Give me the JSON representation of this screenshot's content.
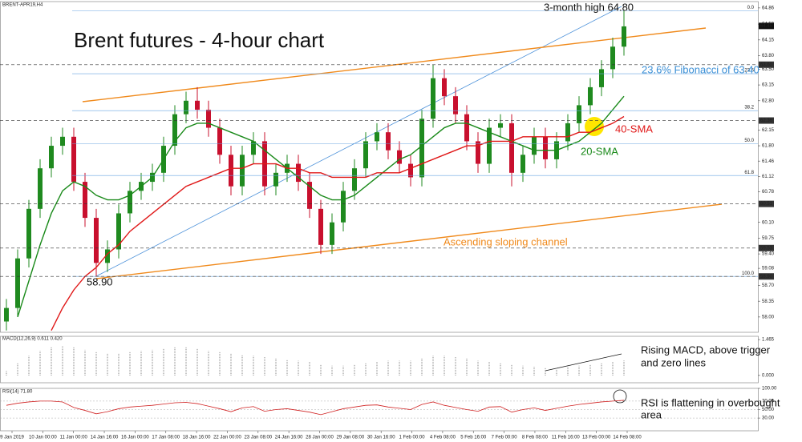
{
  "chart_data": [
    {
      "type": "candlestick",
      "title": "Brent futures - 4-hour chart",
      "symbol": "BRENT-APR19,H4",
      "open": [
        57.9,
        58.2,
        59.3,
        60.4,
        61.3,
        61.8,
        62.0,
        61.0,
        60.2,
        59.2,
        59.5,
        60.3,
        60.8,
        61.0,
        61.2,
        61.8,
        62.5,
        62.8,
        62.6,
        62.2,
        61.6,
        60.9,
        61.6,
        61.9,
        60.9,
        61.2,
        61.4,
        61.0,
        60.4,
        59.6,
        60.1,
        60.8,
        61.3,
        61.9,
        62.1,
        61.7,
        61.4,
        61.1,
        62.4,
        63.3,
        62.9,
        62.5,
        61.9,
        61.4,
        62.2,
        62.3,
        61.2,
        61.6,
        62.0,
        61.5,
        61.9,
        62.3,
        62.7,
        63.1,
        63.5,
        64.0
      ],
      "high": [
        58.4,
        59.5,
        60.6,
        61.5,
        62.0,
        62.2,
        62.2,
        61.2,
        60.4,
        59.7,
        60.5,
        61.0,
        61.2,
        61.4,
        62.0,
        62.7,
        63.0,
        63.1,
        62.8,
        62.4,
        61.8,
        61.8,
        62.1,
        62.1,
        61.4,
        61.6,
        61.6,
        61.2,
        60.6,
        60.3,
        61.0,
        61.5,
        62.1,
        62.3,
        62.3,
        61.9,
        61.6,
        62.6,
        63.6,
        63.5,
        63.1,
        62.7,
        62.1,
        62.4,
        62.5,
        62.5,
        61.8,
        62.2,
        62.2,
        62.1,
        62.5,
        62.9,
        63.3,
        63.7,
        64.2,
        64.8
      ],
      "low": [
        57.7,
        58.0,
        59.1,
        60.2,
        61.1,
        61.6,
        60.8,
        60.0,
        58.9,
        59.0,
        59.3,
        60.1,
        60.6,
        60.8,
        61.0,
        61.6,
        62.3,
        62.4,
        62.0,
        61.4,
        60.7,
        60.7,
        61.4,
        60.7,
        60.7,
        61.0,
        60.8,
        60.2,
        59.4,
        59.4,
        59.9,
        60.6,
        61.1,
        61.7,
        61.5,
        61.2,
        60.9,
        60.9,
        62.2,
        62.7,
        62.3,
        61.7,
        61.2,
        61.2,
        62.0,
        60.9,
        61.0,
        61.4,
        61.3,
        61.3,
        61.7,
        62.1,
        62.5,
        62.9,
        63.3,
        63.8
      ],
      "close": [
        58.2,
        59.3,
        60.4,
        61.3,
        61.8,
        62.0,
        61.0,
        60.2,
        59.2,
        59.5,
        60.3,
        60.8,
        61.0,
        61.2,
        61.8,
        62.5,
        62.8,
        62.6,
        62.2,
        61.6,
        60.9,
        61.6,
        61.9,
        60.9,
        61.2,
        61.4,
        61.0,
        60.4,
        59.6,
        60.1,
        60.8,
        61.3,
        61.9,
        62.1,
        61.7,
        61.4,
        61.1,
        62.4,
        63.3,
        62.9,
        62.5,
        61.9,
        61.4,
        62.2,
        62.3,
        61.2,
        61.6,
        62.0,
        61.5,
        61.9,
        62.3,
        62.7,
        63.1,
        63.5,
        64.0,
        64.45
      ],
      "up_color": "#1f8a1f",
      "down_color": "#c8102e",
      "series": [
        {
          "name": "20-SMA",
          "color": "#1a8a1a",
          "values": [
            null,
            58.0,
            58.8,
            59.6,
            60.3,
            60.8,
            61.0,
            60.9,
            60.7,
            60.6,
            60.6,
            60.7,
            60.9,
            61.1,
            61.5,
            61.9,
            62.2,
            62.3,
            62.3,
            62.2,
            62.1,
            62.0,
            61.9,
            61.7,
            61.5,
            61.3,
            61.1,
            60.9,
            60.7,
            60.6,
            60.6,
            60.7,
            60.9,
            61.1,
            61.3,
            61.5,
            61.6,
            61.8,
            62.0,
            62.2,
            62.3,
            62.3,
            62.2,
            62.1,
            62.0,
            61.9,
            61.8,
            61.7,
            61.7,
            61.7,
            61.8,
            61.9,
            62.1,
            62.3,
            62.6,
            62.9
          ]
        },
        {
          "name": "40-SMA",
          "color": "#e01818",
          "values": [
            null,
            null,
            null,
            null,
            57.7,
            58.2,
            58.6,
            58.9,
            59.1,
            59.4,
            59.6,
            59.9,
            60.1,
            60.3,
            60.5,
            60.7,
            60.9,
            61.0,
            61.1,
            61.2,
            61.3,
            61.3,
            61.4,
            61.4,
            61.4,
            61.3,
            61.3,
            61.2,
            61.2,
            61.1,
            61.1,
            61.1,
            61.1,
            61.2,
            61.2,
            61.2,
            61.3,
            61.4,
            61.5,
            61.6,
            61.7,
            61.8,
            61.8,
            61.9,
            61.9,
            61.9,
            62.0,
            62.0,
            62.0,
            62.0,
            62.0,
            62.1,
            62.1,
            62.2,
            62.3,
            62.45
          ]
        }
      ],
      "ylim": [
        57.66,
        65.0
      ],
      "yticks": [
        {
          "value": 58.0,
          "label": "58.00"
        },
        {
          "value": 58.35,
          "label": "58.35"
        },
        {
          "value": 58.7,
          "label": "58.70"
        },
        {
          "value": 59.08,
          "label": "59.08"
        },
        {
          "value": 59.4,
          "label": "59.40"
        },
        {
          "value": 59.75,
          "label": "59.75"
        },
        {
          "value": 60.1,
          "label": "60.10"
        },
        {
          "value": 60.78,
          "label": "60.78"
        },
        {
          "value": 61.12,
          "label": "61.12"
        },
        {
          "value": 61.46,
          "label": "61.46"
        },
        {
          "value": 61.8,
          "label": "61.80"
        },
        {
          "value": 62.15,
          "label": "62.15"
        },
        {
          "value": 62.8,
          "label": "62.80"
        },
        {
          "value": 63.15,
          "label": "63.15"
        },
        {
          "value": 63.5,
          "label": "63.50"
        },
        {
          "value": 63.8,
          "label": "63.80"
        },
        {
          "value": 64.15,
          "label": "64.15"
        },
        {
          "value": 64.5,
          "label": "64.50"
        },
        {
          "value": 64.86,
          "label": "64.86"
        }
      ],
      "levels": [
        {
          "value": 63.6,
          "label": "63.60"
        },
        {
          "value": 62.36,
          "label": "62.36"
        },
        {
          "value": 60.51,
          "label": "60.51"
        },
        {
          "value": 59.53,
          "label": "59.53"
        },
        {
          "value": 58.9,
          "label": "58.90"
        }
      ],
      "current": {
        "value": 64.46,
        "label": "64.46"
      },
      "fibonacci": [
        {
          "value": 64.8,
          "label": "0.0"
        },
        {
          "value": 63.4,
          "label": "23.6"
        },
        {
          "value": 62.58,
          "label": "38.2"
        },
        {
          "value": 61.85,
          "label": "50.0"
        },
        {
          "value": 61.14,
          "label": "61.8"
        },
        {
          "value": 58.9,
          "label": "100.0"
        }
      ],
      "annotations": {
        "high": "3-month high 64.80",
        "fib": "23.6% Fibonacci of 63.40",
        "channel": "Ascending sloping channel",
        "low": "58.90"
      }
    },
    {
      "type": "bar",
      "title": "MACD(12,26,9) 0.611 0.420",
      "color": "#a8a8a8",
      "values": [
        0.2,
        0.5,
        0.8,
        1.0,
        1.15,
        1.2,
        1.15,
        1.05,
        0.95,
        0.9,
        0.9,
        0.95,
        1.0,
        1.05,
        1.1,
        1.15,
        1.15,
        1.1,
        1.0,
        0.95,
        0.9,
        0.85,
        0.8,
        0.75,
        0.7,
        0.65,
        0.6,
        0.55,
        0.45,
        0.4,
        0.4,
        0.45,
        0.5,
        0.55,
        0.6,
        0.6,
        0.6,
        0.7,
        0.8,
        0.8,
        0.75,
        0.7,
        0.6,
        0.55,
        0.5,
        0.45,
        0.4,
        0.35,
        0.3,
        0.3,
        0.35,
        0.4,
        0.45,
        0.5,
        0.55,
        0.61
      ],
      "ylim": [
        -0.3,
        1.6
      ],
      "yticks": [
        {
          "value": 1.465,
          "label": "1.465"
        },
        {
          "value": 0,
          "label": "0.000"
        }
      ],
      "annotation": [
        "Rising MACD, above trigger",
        "and zero lines"
      ]
    },
    {
      "type": "line",
      "title": "RSI(14) 71.80",
      "color": "#d02020",
      "grid": true,
      "values": [
        60,
        65,
        68,
        70,
        70,
        68,
        55,
        48,
        40,
        45,
        52,
        56,
        58,
        60,
        63,
        66,
        67,
        64,
        58,
        52,
        45,
        54,
        57,
        46,
        50,
        52,
        48,
        44,
        38,
        45,
        52,
        56,
        60,
        61,
        56,
        53,
        50,
        62,
        68,
        60,
        55,
        50,
        46,
        56,
        57,
        44,
        50,
        54,
        48,
        53,
        58,
        62,
        65,
        68,
        70,
        71.8
      ],
      "ylim": [
        0,
        100
      ],
      "yticks": [
        {
          "value": 100,
          "label": "100.00"
        },
        {
          "value": 70,
          "label": "70.00"
        },
        {
          "value": 50,
          "label": "50.00"
        },
        {
          "value": 30,
          "label": "30.00"
        }
      ],
      "annotation": [
        "RSI is flattening in overbought",
        "area"
      ]
    }
  ],
  "x_axis": {
    "labels": [
      "9 Jan 2019",
      "10 Jan 00:00",
      "11 Jan 00:00",
      "14 Jan 16:00",
      "16 Jan 00:00",
      "17 Jan 08:00",
      "18 Jan 16:00",
      "22 Jan 00:00",
      "23 Jan 08:00",
      "24 Jan 16:00",
      "28 Jan 00:00",
      "29 Jan 08:00",
      "30 Jan 16:00",
      "1 Feb 00:00",
      "4 Feb 08:00",
      "5 Feb 16:00",
      "7 Feb 00:00",
      "8 Feb 08:00",
      "11 Feb 16:00",
      "13 Feb 00:00",
      "14 Feb 08:00"
    ]
  }
}
